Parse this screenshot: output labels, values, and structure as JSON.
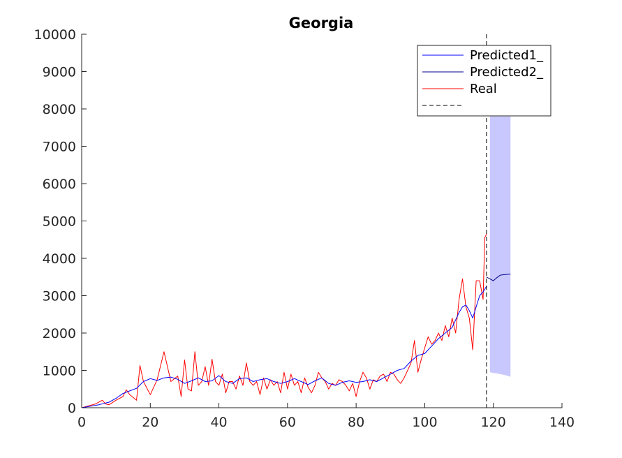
{
  "chart_data": {
    "type": "line",
    "title": "Georgia",
    "xlabel": "",
    "ylabel": "",
    "xlim": [
      0,
      140
    ],
    "ylim": [
      0,
      10000
    ],
    "xticks": [
      0,
      20,
      40,
      60,
      80,
      100,
      120,
      140
    ],
    "yticks": [
      0,
      1000,
      2000,
      3000,
      4000,
      5000,
      6000,
      7000,
      8000,
      9000,
      10000
    ],
    "grid": false,
    "legend_placement": "top-right",
    "cutoff_x": 118,
    "colors": {
      "predicted1": "#0000ff",
      "predicted2": "#00008b",
      "real": "#ff0000",
      "cutoff": "#000000",
      "band": "#c8c8ff"
    },
    "series": [
      {
        "name": "Predicted1_",
        "x": [
          0,
          5,
          8,
          10,
          12,
          14,
          16,
          18,
          20,
          22,
          24,
          26,
          28,
          30,
          32,
          34,
          36,
          38,
          40,
          42,
          44,
          46,
          48,
          50,
          52,
          54,
          56,
          58,
          60,
          62,
          64,
          66,
          68,
          70,
          72,
          74,
          76,
          78,
          80,
          82,
          84,
          86,
          88,
          90,
          92,
          94,
          96,
          98,
          100,
          102,
          104,
          106,
          108,
          110,
          111,
          112,
          113,
          114,
          115,
          116,
          117,
          118
        ],
        "values": [
          0,
          80,
          150,
          250,
          380,
          450,
          520,
          700,
          780,
          730,
          800,
          820,
          760,
          650,
          720,
          800,
          700,
          720,
          860,
          700,
          650,
          780,
          800,
          700,
          750,
          780,
          700,
          650,
          700,
          780,
          700,
          620,
          720,
          800,
          650,
          600,
          680,
          720,
          680,
          700,
          750,
          700,
          800,
          900,
          1000,
          1050,
          1250,
          1400,
          1450,
          1650,
          1850,
          2000,
          2150,
          2550,
          2700,
          2750,
          2600,
          2400,
          2700,
          3000,
          3100,
          3250
        ]
      },
      {
        "name": "Predicted2_",
        "x": [
          118,
          119,
          120,
          121,
          122,
          123,
          124,
          125
        ],
        "values": [
          3500,
          3450,
          3400,
          3480,
          3550,
          3560,
          3570,
          3580
        ]
      },
      {
        "name": "Real",
        "x": [
          0,
          2,
          4,
          6,
          7,
          8,
          10,
          12,
          13,
          14,
          16,
          17,
          18,
          20,
          21,
          22,
          24,
          26,
          28,
          29,
          30,
          31,
          32,
          33,
          34,
          35,
          36,
          37,
          38,
          39,
          40,
          41,
          42,
          43,
          44,
          45,
          46,
          47,
          48,
          49,
          50,
          51,
          52,
          53,
          54,
          55,
          56,
          57,
          58,
          59,
          60,
          61,
          62,
          63,
          64,
          65,
          66,
          67,
          68,
          69,
          70,
          71,
          72,
          73,
          74,
          75,
          76,
          77,
          78,
          79,
          80,
          81,
          82,
          83,
          84,
          85,
          86,
          87,
          88,
          89,
          90,
          91,
          92,
          93,
          94,
          95,
          96,
          97,
          98,
          99,
          100,
          101,
          102,
          103,
          104,
          105,
          106,
          107,
          108,
          109,
          110,
          111,
          112,
          113,
          114,
          115,
          116,
          117,
          117.5,
          118
        ],
        "values": [
          0,
          50,
          100,
          200,
          100,
          80,
          200,
          300,
          480,
          350,
          200,
          1130,
          700,
          350,
          550,
          750,
          1500,
          700,
          850,
          300,
          1280,
          500,
          450,
          1500,
          600,
          700,
          1100,
          600,
          1300,
          700,
          600,
          900,
          400,
          700,
          700,
          500,
          850,
          600,
          1200,
          700,
          600,
          700,
          350,
          800,
          500,
          750,
          600,
          700,
          400,
          950,
          500,
          900,
          600,
          700,
          400,
          800,
          550,
          400,
          600,
          950,
          800,
          700,
          500,
          650,
          600,
          750,
          700,
          600,
          450,
          650,
          300,
          700,
          950,
          800,
          500,
          750,
          700,
          850,
          900,
          700,
          950,
          900,
          750,
          650,
          800,
          1000,
          1200,
          1800,
          950,
          1300,
          1600,
          1900,
          1700,
          1800,
          2000,
          1800,
          2200,
          1900,
          2400,
          2000,
          2900,
          3450,
          2700,
          2400,
          1550,
          3400,
          3400,
          2900,
          4550,
          4650
        ]
      }
    ],
    "uncertainty_band": {
      "x": [
        119,
        120,
        121,
        122,
        123,
        124,
        125
      ],
      "upper": [
        7800,
        7800,
        7800,
        7800,
        7800,
        7800,
        7800
      ],
      "lower": [
        950,
        930,
        920,
        900,
        880,
        860,
        830
      ]
    }
  }
}
